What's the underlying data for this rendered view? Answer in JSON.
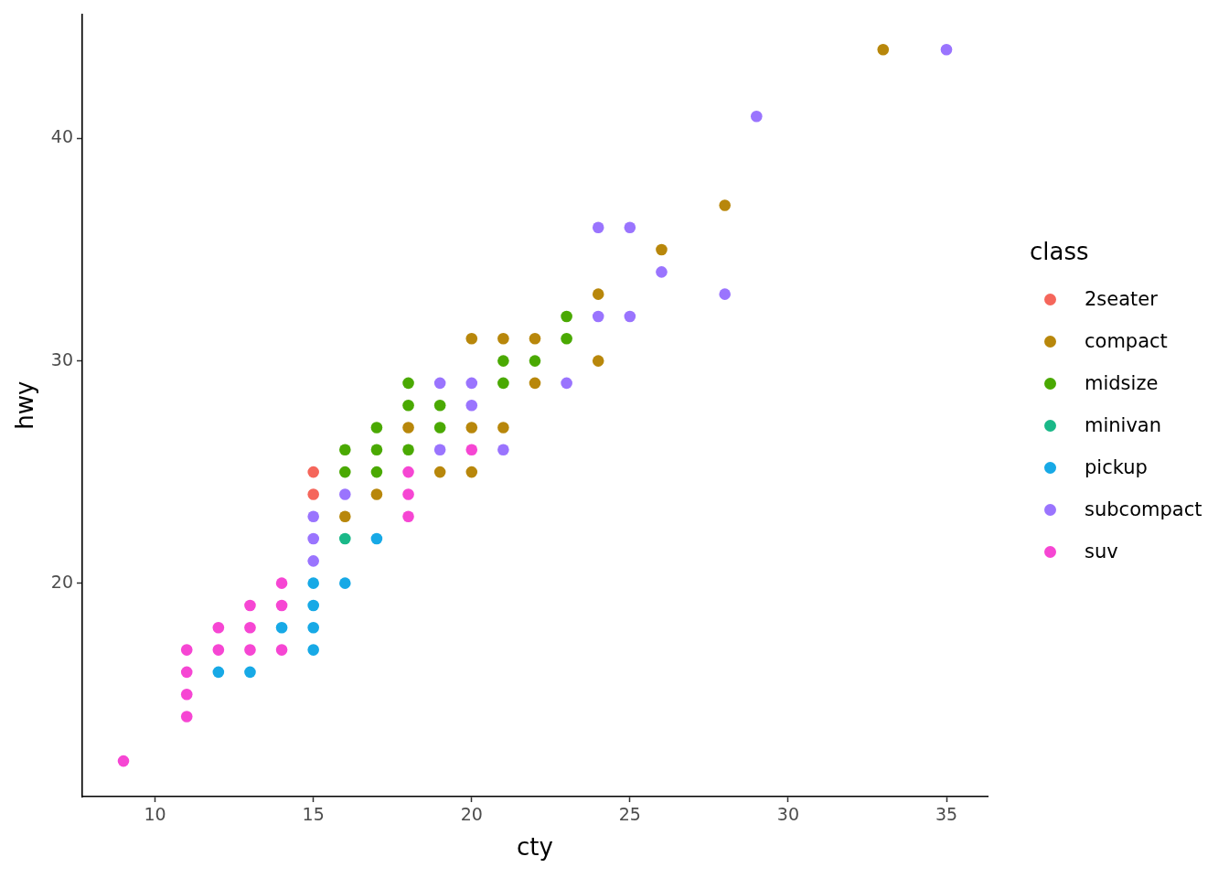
{
  "chart_data": {
    "type": "scatter",
    "xlabel": "cty",
    "ylabel": "hwy",
    "legend_title": "class",
    "xlim": [
      7.7,
      36.3
    ],
    "ylim": [
      10.4,
      45.6
    ],
    "xticks": [
      10,
      15,
      20,
      25,
      30,
      35
    ],
    "yticks": [
      20,
      30,
      40
    ],
    "grid": false,
    "legend": "right",
    "marker": "circle",
    "series": [
      {
        "name": "2seater",
        "color": "#f5665b",
        "x": [
          15,
          15
        ],
        "values": [
          25,
          24
        ]
      },
      {
        "name": "compact",
        "color": "#b8870b",
        "x": [
          16,
          17,
          18,
          19,
          20,
          20,
          20,
          21,
          21,
          22,
          22,
          24,
          24,
          26,
          28,
          33
        ],
        "values": [
          23,
          24,
          27,
          25,
          31,
          27,
          25,
          31,
          27,
          31,
          29,
          33,
          30,
          35,
          37,
          44
        ]
      },
      {
        "name": "midsize",
        "color": "#4aa902",
        "x": [
          16,
          16,
          17,
          17,
          17,
          18,
          18,
          18,
          19,
          19,
          21,
          21,
          22,
          23,
          23
        ],
        "values": [
          26,
          25,
          27,
          26,
          25,
          29,
          28,
          26,
          28,
          27,
          30,
          29,
          30,
          32,
          31
        ]
      },
      {
        "name": "minivan",
        "color": "#1ab888",
        "x": [
          16
        ],
        "values": [
          22
        ]
      },
      {
        "name": "pickup",
        "color": "#17a9e6",
        "x": [
          12,
          13,
          14,
          15,
          15,
          15,
          15,
          16,
          17
        ],
        "values": [
          16,
          16,
          18,
          20,
          19,
          18,
          17,
          20,
          22
        ]
      },
      {
        "name": "subcompact",
        "color": "#9a74fe",
        "x": [
          15,
          15,
          15,
          16,
          19,
          19,
          20,
          20,
          21,
          23,
          24,
          24,
          25,
          25,
          26,
          28,
          29,
          35
        ],
        "values": [
          23,
          22,
          21,
          24,
          29,
          26,
          29,
          28,
          26,
          29,
          36,
          32,
          36,
          32,
          34,
          33,
          41,
          44
        ]
      },
      {
        "name": "suv",
        "color": "#f646d3",
        "x": [
          9,
          11,
          11,
          11,
          11,
          12,
          12,
          13,
          13,
          13,
          14,
          14,
          14,
          18,
          18,
          18,
          20
        ],
        "values": [
          12,
          17,
          16,
          15,
          14,
          18,
          17,
          19,
          18,
          17,
          20,
          19,
          17,
          25,
          24,
          23,
          26
        ]
      }
    ]
  }
}
